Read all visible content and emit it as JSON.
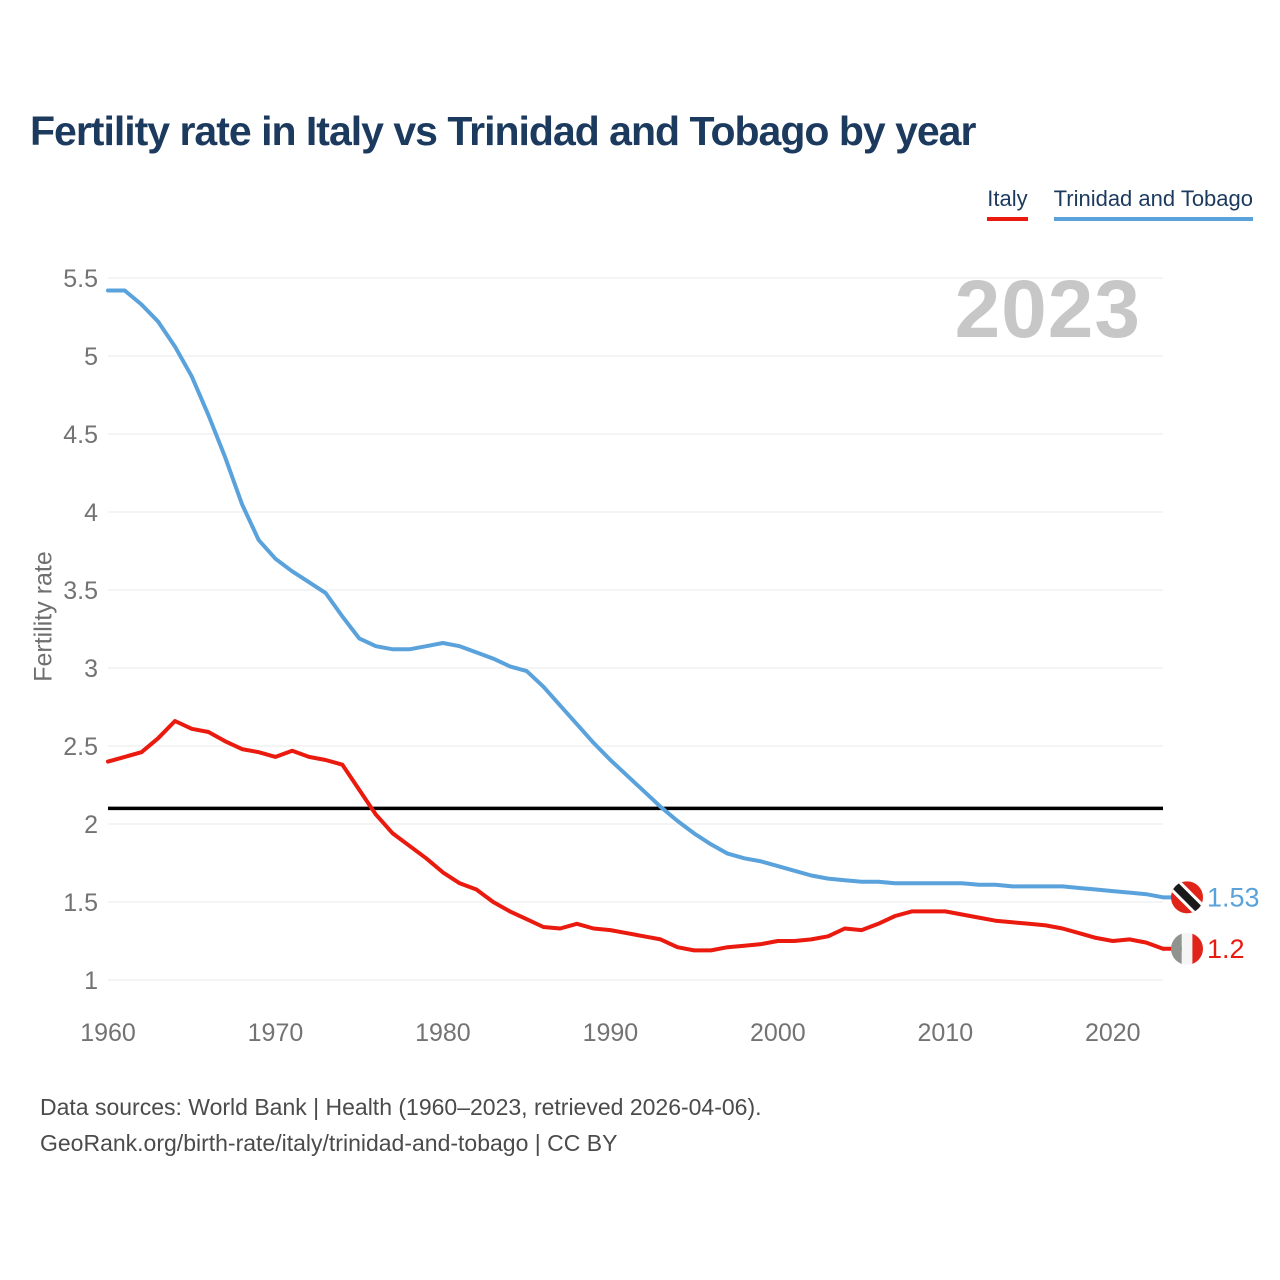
{
  "title": "Fertility rate in Italy vs Trinidad and Tobago by year",
  "watermark": "2023",
  "legend": [
    {
      "label": "Italy",
      "color": "#ea1a0e"
    },
    {
      "label": "Trinidad and Tobago",
      "color": "#5aa2dc"
    }
  ],
  "end_labels": [
    {
      "series": "Trinidad and Tobago",
      "value": "1.53",
      "flag": "trinidad-and-tobago-flag-icon"
    },
    {
      "series": "Italy",
      "value": "1.2",
      "flag": "italy-flag-icon"
    }
  ],
  "footer": {
    "line1": "Data sources: World Bank | Health (1960–2023, retrieved 2026-04-06).",
    "line2": "GeoRank.org/birth-rate/italy/trinidad-and-tobago | CC BY"
  },
  "chart_data": {
    "type": "line",
    "title": "Fertility rate in Italy vs Trinidad and Tobago by year",
    "xlabel": "",
    "ylabel": "Fertility rate",
    "xlim": [
      1960,
      2023
    ],
    "ylim": [
      1,
      5.5
    ],
    "grid": true,
    "legend_position": "top-right",
    "reference_line": {
      "value": 2.1,
      "color": "#000000"
    },
    "x_ticks": [
      {
        "value": 1960,
        "label": "1960"
      },
      {
        "value": 1970,
        "label": "1970"
      },
      {
        "value": 1980,
        "label": "1980"
      },
      {
        "value": 1990,
        "label": "1990"
      },
      {
        "value": 2000,
        "label": "2000"
      },
      {
        "value": 2010,
        "label": "2010"
      },
      {
        "value": 2020,
        "label": "2020"
      }
    ],
    "y_ticks": [
      {
        "value": 1,
        "label": "1"
      },
      {
        "value": 1.5,
        "label": "1.5"
      },
      {
        "value": 2,
        "label": "2"
      },
      {
        "value": 2.5,
        "label": "2.5"
      },
      {
        "value": 3,
        "label": "3"
      },
      {
        "value": 3.5,
        "label": "3.5"
      },
      {
        "value": 4,
        "label": "4"
      },
      {
        "value": 4.5,
        "label": "4.5"
      },
      {
        "value": 5,
        "label": "5"
      },
      {
        "value": 5.5,
        "label": "5.5"
      }
    ],
    "x": [
      1960,
      1961,
      1962,
      1963,
      1964,
      1965,
      1966,
      1967,
      1968,
      1969,
      1970,
      1971,
      1972,
      1973,
      1974,
      1975,
      1976,
      1977,
      1978,
      1979,
      1980,
      1981,
      1982,
      1983,
      1984,
      1985,
      1986,
      1987,
      1988,
      1989,
      1990,
      1991,
      1992,
      1993,
      1994,
      1995,
      1996,
      1997,
      1998,
      1999,
      2000,
      2001,
      2002,
      2003,
      2004,
      2005,
      2006,
      2007,
      2008,
      2009,
      2010,
      2011,
      2012,
      2013,
      2014,
      2015,
      2016,
      2017,
      2018,
      2019,
      2020,
      2021,
      2022,
      2023
    ],
    "series": [
      {
        "name": "Italy",
        "color": "#ea1a0e",
        "end_value": 1.2,
        "values": [
          2.4,
          2.43,
          2.46,
          2.55,
          2.66,
          2.61,
          2.59,
          2.53,
          2.48,
          2.46,
          2.43,
          2.47,
          2.43,
          2.41,
          2.38,
          2.22,
          2.06,
          1.94,
          1.86,
          1.78,
          1.69,
          1.62,
          1.58,
          1.5,
          1.44,
          1.39,
          1.34,
          1.33,
          1.36,
          1.33,
          1.32,
          1.3,
          1.28,
          1.26,
          1.21,
          1.19,
          1.19,
          1.21,
          1.22,
          1.23,
          1.25,
          1.25,
          1.26,
          1.28,
          1.33,
          1.32,
          1.36,
          1.41,
          1.44,
          1.44,
          1.44,
          1.42,
          1.4,
          1.38,
          1.37,
          1.36,
          1.35,
          1.33,
          1.3,
          1.27,
          1.25,
          1.26,
          1.24,
          1.2
        ]
      },
      {
        "name": "Trinidad and Tobago",
        "color": "#5aa2dc",
        "end_value": 1.53,
        "values": [
          5.42,
          5.42,
          5.33,
          5.22,
          5.06,
          4.87,
          4.62,
          4.35,
          4.05,
          3.82,
          3.7,
          3.62,
          3.55,
          3.48,
          3.33,
          3.19,
          3.14,
          3.12,
          3.12,
          3.14,
          3.16,
          3.14,
          3.1,
          3.06,
          3.01,
          2.98,
          2.88,
          2.76,
          2.64,
          2.52,
          2.41,
          2.31,
          2.21,
          2.11,
          2.02,
          1.94,
          1.87,
          1.81,
          1.78,
          1.76,
          1.73,
          1.7,
          1.67,
          1.65,
          1.64,
          1.63,
          1.63,
          1.62,
          1.62,
          1.62,
          1.62,
          1.62,
          1.61,
          1.61,
          1.6,
          1.6,
          1.6,
          1.6,
          1.59,
          1.58,
          1.57,
          1.56,
          1.55,
          1.53
        ]
      }
    ]
  }
}
